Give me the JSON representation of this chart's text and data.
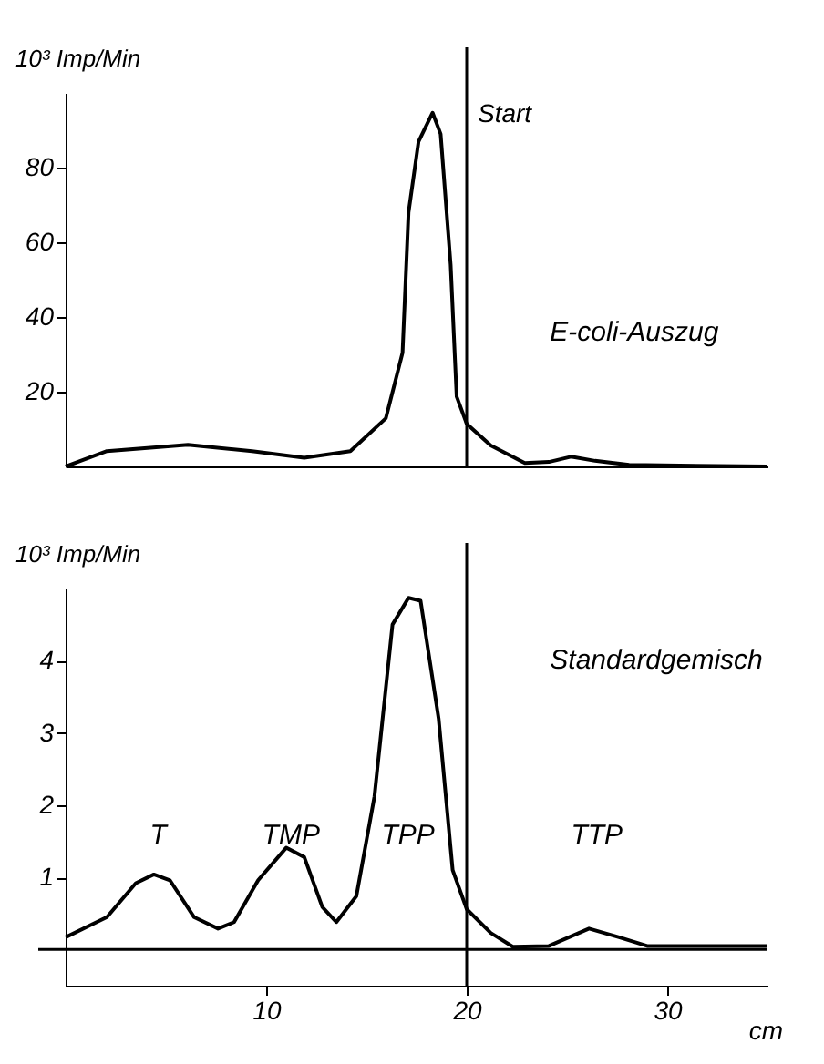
{
  "chart_data": [
    {
      "type": "line",
      "ylabel": "10³ Imp/Min",
      "xlim": [
        0,
        35
      ],
      "ylim": [
        0,
        100
      ],
      "yticks": [
        20,
        40,
        60,
        80
      ],
      "tick_labels": "y",
      "grid": false,
      "legend": false,
      "marker": "none",
      "line_style": "solid",
      "series": [
        {
          "color": "#000000",
          "x": [
            0,
            2.06,
            6.1,
            9.3,
            11.9,
            14.2,
            15.97,
            16.8,
            17.1,
            17.6,
            18.3,
            18.7,
            19.2,
            19.5,
            20.0,
            21.2,
            22.9,
            24.1,
            25.2,
            26.4,
            28.1,
            35
          ],
          "values": [
            0,
            4.1,
            5.8,
            4.1,
            2.3,
            4.1,
            12.9,
            30.4,
            68,
            87,
            94.7,
            89,
            54,
            18.7,
            11.4,
            5.6,
            0.9,
            1.2,
            2.6,
            1.5,
            0.4,
            0
          ]
        }
      ],
      "ref_lines": [
        {
          "axis": "x",
          "value": 20,
          "label": "Start",
          "color": "#000000"
        }
      ],
      "annotations": [
        "E-coli-Auszug"
      ]
    },
    {
      "type": "line",
      "ylabel": "10³ Imp/Min",
      "xlabel": "cm",
      "xlim": [
        0,
        35
      ],
      "xticks": [
        10,
        20,
        30
      ],
      "ylim": [
        -0.5,
        5
      ],
      "yticks": [
        1,
        2,
        3,
        4
      ],
      "grid": false,
      "legend": false,
      "marker": "none",
      "line_style": "solid",
      "series": [
        {
          "color": "#000000",
          "x": [
            0,
            2.06,
            3.5,
            4.4,
            5.2,
            6.4,
            7.6,
            8.4,
            9.6,
            11.0,
            11.9,
            12.8,
            13.5,
            14.5,
            15.4,
            16.3,
            17.1,
            17.7,
            18.6,
            19.3,
            20.0,
            21.2,
            22.3,
            24.1,
            26.1,
            27.6,
            29.0,
            35
          ],
          "values": [
            0.17,
            0.45,
            0.92,
            1.04,
            0.96,
            0.45,
            0.29,
            0.38,
            0.96,
            1.41,
            1.28,
            0.59,
            0.38,
            0.74,
            2.12,
            4.5,
            4.87,
            4.83,
            3.2,
            1.1,
            0.56,
            0.23,
            0.04,
            0.05,
            0.29,
            0.17,
            0.05,
            0.05
          ]
        }
      ],
      "ref_lines": [
        {
          "axis": "x",
          "value": 20,
          "label": null,
          "color": "#000000"
        },
        {
          "axis": "y",
          "value": 0,
          "label": null,
          "color": "#000000"
        }
      ],
      "annotations": [
        "Standardgemisch",
        "T",
        "TMP",
        "TPP",
        "TTP"
      ]
    }
  ]
}
